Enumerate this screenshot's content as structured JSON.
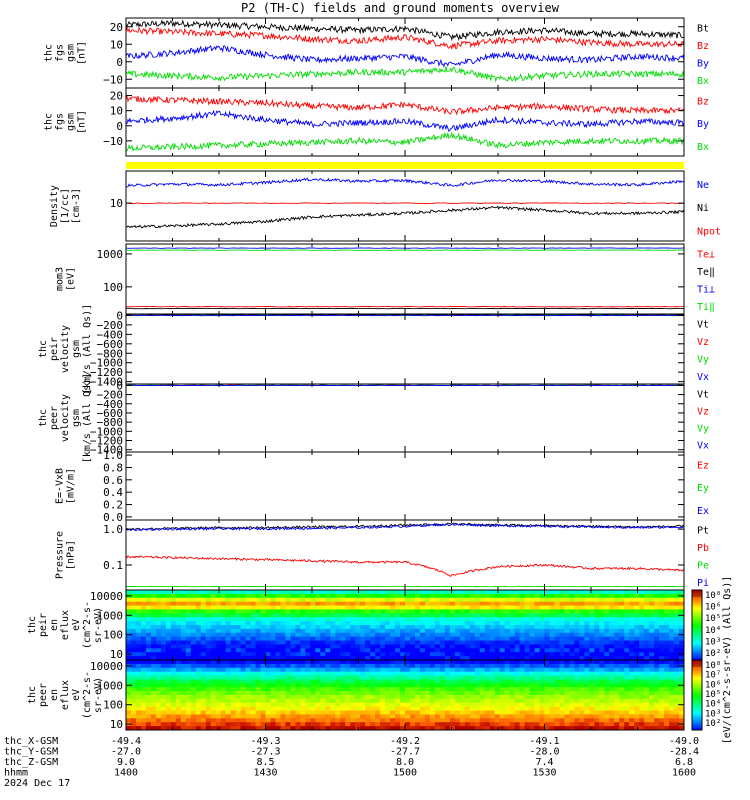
{
  "title": "P2 (TH-C) fields and ground moments overview",
  "x_axis": {
    "ticks_hhmm": [
      "1400",
      "1430",
      "1500",
      "1530",
      "1600"
    ],
    "rows": [
      {
        "label": "thc_X-GSM",
        "values": [
          "-49.4",
          "-49.3",
          "-49.2",
          "-49.1",
          "-49.0"
        ]
      },
      {
        "label": "thc_Y-GSM",
        "values": [
          "-27.0",
          "-27.3",
          "-27.7",
          "-28.0",
          "-28.4"
        ]
      },
      {
        "label": "thc_Z-GSM",
        "values": [
          "9.0",
          "8.5",
          "8.0",
          "7.4",
          "6.8"
        ]
      },
      {
        "label": "hhmm",
        "values": [
          "1400",
          "1430",
          "1500",
          "1530",
          "1600"
        ]
      }
    ],
    "date": "2024 Dec 17"
  },
  "colors": {
    "black": "#000000",
    "red": "#ff0000",
    "green": "#00dd00",
    "blue": "#0000ff",
    "yellow": "#ffff00"
  },
  "chart_data": [
    {
      "id": "fgs_full",
      "type": "line",
      "ylabel": [
        "thc",
        "fgs",
        "gsm",
        "[nT]"
      ],
      "ylim": [
        -15,
        25
      ],
      "yticks": [
        {
          "v": 20,
          "t": "20"
        },
        {
          "v": 10,
          "t": "10"
        },
        {
          "v": 0,
          "t": "0"
        },
        {
          "v": -10,
          "t": "−10"
        }
      ],
      "series": [
        {
          "name": "Bt",
          "color": "#000000",
          "x": [
            1400,
            1410,
            1420,
            1430,
            1440,
            1450,
            1500,
            1510,
            1520,
            1530,
            1540,
            1550,
            1600
          ],
          "y": [
            21,
            22,
            21,
            20,
            19,
            18,
            19,
            14,
            17,
            18,
            16,
            16,
            15
          ]
        },
        {
          "name": "Bz",
          "color": "#ff0000",
          "x": [
            1400,
            1410,
            1420,
            1430,
            1440,
            1450,
            1500,
            1510,
            1520,
            1530,
            1540,
            1550,
            1600
          ],
          "y": [
            18,
            17,
            16,
            15,
            13,
            12,
            14,
            9,
            12,
            13,
            11,
            10,
            10
          ]
        },
        {
          "name": "By",
          "color": "#0000ff",
          "x": [
            1400,
            1410,
            1420,
            1430,
            1440,
            1450,
            1500,
            1510,
            1520,
            1530,
            1540,
            1550,
            1600
          ],
          "y": [
            3,
            5,
            8,
            4,
            1,
            2,
            3,
            -2,
            4,
            2,
            1,
            3,
            2
          ]
        },
        {
          "name": "Bx",
          "color": "#00dd00",
          "x": [
            1400,
            1410,
            1420,
            1430,
            1440,
            1450,
            1500,
            1510,
            1520,
            1530,
            1540,
            1550,
            1600
          ],
          "y": [
            -7,
            -8,
            -9,
            -8,
            -7,
            -6,
            -6,
            -4,
            -10,
            -8,
            -7,
            -7,
            -7
          ]
        }
      ]
    },
    {
      "id": "fgs_comp",
      "type": "line",
      "ylabel": [
        "thc",
        "fgs",
        "gsm",
        "[nT]"
      ],
      "ylim": [
        -20,
        25
      ],
      "yticks": [
        {
          "v": 20,
          "t": "20"
        },
        {
          "v": 10,
          "t": "10"
        },
        {
          "v": 0,
          "t": "0"
        },
        {
          "v": -10,
          "t": "−10"
        }
      ],
      "series": [
        {
          "name": "Bz",
          "color": "#ff0000",
          "x": [
            1400,
            1410,
            1420,
            1430,
            1440,
            1450,
            1500,
            1510,
            1520,
            1530,
            1540,
            1550,
            1600
          ],
          "y": [
            18,
            17,
            16,
            15,
            13,
            12,
            14,
            9,
            12,
            13,
            11,
            10,
            10
          ]
        },
        {
          "name": "By",
          "color": "#0000ff",
          "x": [
            1400,
            1410,
            1420,
            1430,
            1440,
            1450,
            1500,
            1510,
            1520,
            1530,
            1540,
            1550,
            1600
          ],
          "y": [
            3,
            5,
            8,
            4,
            1,
            2,
            3,
            -2,
            4,
            2,
            1,
            3,
            2
          ]
        },
        {
          "name": "Bx",
          "color": "#00dd00",
          "x": [
            1400,
            1410,
            1420,
            1430,
            1440,
            1450,
            1500,
            1510,
            1520,
            1530,
            1540,
            1550,
            1600
          ],
          "y": [
            -15,
            -14,
            -13,
            -12,
            -11,
            -10,
            -11,
            -6,
            -13,
            -11,
            -10,
            -10,
            -10
          ]
        }
      ]
    },
    {
      "id": "density",
      "type": "line",
      "ylabel": [
        "Density",
        "[1/cc]",
        "[cm-3]"
      ],
      "ylog": true,
      "ylim": [
        1.5,
        50
      ],
      "yticks": [
        {
          "v": 10,
          "t": "10"
        }
      ],
      "series": [
        {
          "name": "Ne",
          "color": "#0000ff",
          "x": [
            1400,
            1410,
            1420,
            1430,
            1440,
            1450,
            1500,
            1510,
            1520,
            1530,
            1540,
            1550,
            1600
          ],
          "y": [
            24,
            26,
            25,
            28,
            33,
            30,
            31,
            24,
            32,
            30,
            26,
            25,
            30
          ]
        },
        {
          "name": "Ni",
          "color": "#000000",
          "x": [
            1400,
            1410,
            1420,
            1430,
            1440,
            1450,
            1500,
            1510,
            1520,
            1530,
            1540,
            1550,
            1600
          ],
          "y": [
            3,
            3.2,
            3.5,
            4,
            5,
            5.5,
            6,
            7,
            8,
            7,
            6,
            6,
            6.5
          ]
        },
        {
          "name": "Npot",
          "color": "#ff0000",
          "x": [
            1400,
            1600
          ],
          "y": [
            10,
            10
          ]
        }
      ]
    },
    {
      "id": "temperature",
      "type": "line",
      "ylabel": [
        "mom3",
        "[eV]"
      ],
      "ylog": true,
      "ylim": [
        15,
        2000
      ],
      "yticks": [
        {
          "v": 1000,
          "t": "1000"
        },
        {
          "v": 100,
          "t": "100"
        }
      ],
      "series": [
        {
          "name": "Te⊥",
          "color": "#ff0000",
          "x": [
            1400,
            1600
          ],
          "y": [
            25,
            25
          ]
        },
        {
          "name": "Te‖",
          "color": "#000000",
          "x": [
            1400,
            1600
          ],
          "y": [
            22,
            22
          ]
        },
        {
          "name": "Ti⊥",
          "color": "#0000ff",
          "x": [
            1400,
            1600
          ],
          "y": [
            1500,
            1500
          ]
        },
        {
          "name": "Ti‖",
          "color": "#00dd00",
          "x": [
            1400,
            1600
          ],
          "y": [
            1300,
            1300
          ]
        }
      ]
    },
    {
      "id": "peir_velocity",
      "type": "line",
      "ylabel": [
        "thc",
        "peir",
        "velocity",
        "gsm",
        "[km/s (All Qs)]"
      ],
      "ylim": [
        -1450,
        30
      ],
      "yticks": [
        {
          "v": 0,
          "t": "0"
        },
        {
          "v": -200,
          "t": "−200"
        },
        {
          "v": -400,
          "t": "−400"
        },
        {
          "v": -600,
          "t": "−600"
        },
        {
          "v": -800,
          "t": "−800"
        },
        {
          "v": -1000,
          "t": "−1000"
        },
        {
          "v": -1200,
          "t": "−1200"
        },
        {
          "v": -1400,
          "t": "−1400"
        }
      ],
      "series": [
        {
          "name": "Vt",
          "color": "#000000",
          "x": [
            1400,
            1600
          ],
          "y": [
            10,
            10
          ]
        },
        {
          "name": "Vz",
          "color": "#ff0000",
          "x": [
            1400,
            1600
          ],
          "y": [
            0,
            0
          ]
        },
        {
          "name": "Vy",
          "color": "#00dd00",
          "x": [
            1400,
            1600
          ],
          "y": [
            0,
            0
          ]
        },
        {
          "name": "Vx",
          "color": "#0000ff",
          "x": [
            1400,
            1600
          ],
          "y": [
            0,
            0
          ]
        }
      ]
    },
    {
      "id": "peer_velocity",
      "type": "line",
      "ylabel": [
        "thc",
        "peer",
        "velocity",
        "gsm",
        "[km/s (All Qs)]"
      ],
      "ylim": [
        -1450,
        30
      ],
      "yticks": [
        {
          "v": 0,
          "t": "0"
        },
        {
          "v": -200,
          "t": "−200"
        },
        {
          "v": -400,
          "t": "−400"
        },
        {
          "v": -600,
          "t": "−600"
        },
        {
          "v": -800,
          "t": "−800"
        },
        {
          "v": -1000,
          "t": "−1000"
        },
        {
          "v": -1200,
          "t": "−1200"
        },
        {
          "v": -1400,
          "t": "−1400"
        }
      ],
      "series": [
        {
          "name": "Vt",
          "color": "#000000",
          "x": [
            1400,
            1600
          ],
          "y": [
            0,
            0
          ]
        },
        {
          "name": "Vz",
          "color": "#ff0000",
          "x": [
            1400,
            1600
          ],
          "y": [
            0,
            0
          ]
        },
        {
          "name": "Vy",
          "color": "#00dd00",
          "x": [
            1400,
            1600
          ],
          "y": [
            0,
            0
          ]
        },
        {
          "name": "Vx",
          "color": "#0000ff",
          "x": [
            1400,
            1600
          ],
          "y": [
            0,
            0
          ]
        }
      ]
    },
    {
      "id": "efield",
      "type": "line",
      "ylabel": [
        "E=-VxB",
        "[mV/m]"
      ],
      "ylim": [
        -0.05,
        1.05
      ],
      "yticks": [
        {
          "v": 1.0,
          "t": "1.0"
        },
        {
          "v": 0.8,
          "t": "0.8"
        },
        {
          "v": 0.6,
          "t": "0.6"
        },
        {
          "v": 0.4,
          "t": "0.4"
        },
        {
          "v": 0.2,
          "t": "0.2"
        },
        {
          "v": 0.0,
          "t": "0.0"
        }
      ],
      "series": [
        {
          "name": "Ez",
          "color": "#ff0000",
          "x": [],
          "y": []
        },
        {
          "name": "Ey",
          "color": "#00dd00",
          "x": [],
          "y": []
        },
        {
          "name": "Ex",
          "color": "#0000ff",
          "x": [],
          "y": []
        }
      ]
    },
    {
      "id": "pressure",
      "type": "line",
      "ylabel": [
        "Pressure",
        "[nPa]"
      ],
      "ylog": true,
      "ylim": [
        0.02,
        1.8
      ],
      "yticks": [
        {
          "v": 1.0,
          "t": "1.0"
        },
        {
          "v": 0.1,
          "t": "0.1"
        }
      ],
      "series": [
        {
          "name": "Pt",
          "color": "#000000",
          "x": [
            1400,
            1410,
            1420,
            1430,
            1440,
            1450,
            1500,
            1510,
            1520,
            1530,
            1540,
            1550,
            1600
          ],
          "y": [
            1.0,
            1.05,
            1.1,
            1.1,
            1.15,
            1.2,
            1.3,
            1.4,
            1.3,
            1.25,
            1.2,
            1.15,
            1.2
          ]
        },
        {
          "name": "Pb",
          "color": "#ff0000",
          "x": [
            1400,
            1410,
            1420,
            1430,
            1440,
            1450,
            1500,
            1510,
            1520,
            1530,
            1540,
            1550,
            1600
          ],
          "y": [
            0.17,
            0.16,
            0.15,
            0.14,
            0.13,
            0.12,
            0.12,
            0.05,
            0.09,
            0.1,
            0.08,
            0.08,
            0.07
          ]
        },
        {
          "name": "Pe",
          "color": "#00dd00",
          "x": [
            1400,
            1600
          ],
          "y": [
            0.025,
            0.025
          ]
        },
        {
          "name": "Pi",
          "color": "#0000ff",
          "x": [
            1400,
            1410,
            1420,
            1430,
            1440,
            1450,
            1500,
            1510,
            1520,
            1530,
            1540,
            1550,
            1600
          ],
          "y": [
            0.95,
            1.0,
            1.02,
            1.03,
            1.05,
            1.1,
            1.2,
            1.35,
            1.25,
            1.2,
            1.15,
            1.1,
            1.15
          ]
        }
      ]
    },
    {
      "id": "peir_spectrogram",
      "type": "heatmap",
      "ylabel": [
        "thc",
        "peir",
        "en",
        "eflux",
        "eV",
        "(cm^2-s-",
        "sr-eV)"
      ],
      "ylog": true,
      "ylim": [
        5,
        20000
      ],
      "yticks": [
        {
          "v": 10000,
          "t": "10000"
        },
        {
          "v": 1000,
          "t": "1000"
        },
        {
          "v": 100,
          "t": "100"
        },
        {
          "v": 10,
          "t": "10"
        }
      ],
      "profile_logE": [
        0.7,
        1.0,
        1.3,
        1.6,
        1.9,
        2.2,
        2.5,
        2.8,
        3.0,
        3.2,
        3.35,
        3.5,
        3.7,
        3.9,
        4.1,
        4.3
      ],
      "profile_level": [
        1.5,
        1.8,
        2.0,
        2.3,
        2.7,
        3.0,
        3.3,
        3.7,
        4.6,
        5.2,
        6.2,
        7.3,
        6.8,
        5.8,
        4.5,
        3.2
      ]
    },
    {
      "id": "peer_spectrogram",
      "type": "heatmap",
      "ylabel": [
        "thc",
        "peer",
        "en",
        "eflux",
        "eV",
        "(cm^2-s-",
        "sr-eV)"
      ],
      "ylog": true,
      "ylim": [
        5,
        20000
      ],
      "yticks": [
        {
          "v": 10000,
          "t": "10000"
        },
        {
          "v": 1000,
          "t": "1000"
        },
        {
          "v": 100,
          "t": "100"
        },
        {
          "v": 10,
          "t": "10"
        }
      ],
      "profile_logE": [
        0.7,
        1.0,
        1.3,
        1.6,
        1.9,
        2.2,
        2.5,
        2.8,
        3.0,
        3.2,
        3.4,
        3.6,
        3.8,
        4.0,
        4.2,
        4.3
      ],
      "profile_level": [
        8.0,
        7.6,
        7.2,
        6.8,
        6.4,
        6.1,
        5.8,
        5.4,
        5.0,
        4.6,
        4.1,
        3.6,
        3.0,
        2.5,
        2.0,
        1.5
      ]
    }
  ],
  "colorbar": {
    "ticks_top": [
      "10⁸",
      "10⁶",
      "10⁵",
      "10⁴",
      "10³",
      "10²"
    ],
    "ticks_bottom": [
      "10⁸",
      "10⁷",
      "10⁶",
      "10⁵",
      "10⁴",
      "10³",
      "10²"
    ],
    "label": "[eV/(cm^2-s-sr-eV) (All Qs)]"
  }
}
